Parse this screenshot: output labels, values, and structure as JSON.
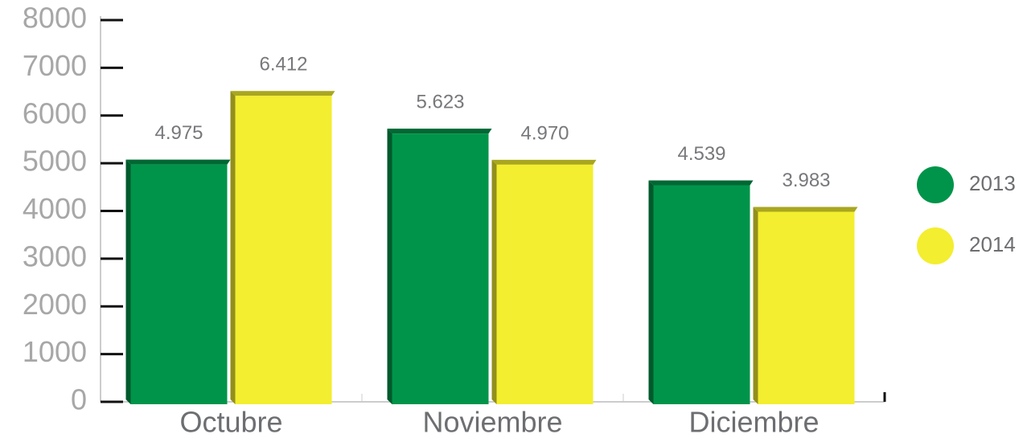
{
  "chart_data": {
    "type": "bar",
    "categories": [
      "Octubre",
      "Noviembre",
      "Diciembre"
    ],
    "series": [
      {
        "name": "2013",
        "color": "#00944a",
        "values": [
          4975,
          5623,
          4539
        ],
        "value_labels": [
          "4.975",
          "5.623",
          "4.539"
        ]
      },
      {
        "name": "2014",
        "color": "#f3ee2f",
        "values": [
          6412,
          4970,
          3983
        ],
        "value_labels": [
          "6.412",
          "4.970",
          "3.983"
        ]
      }
    ],
    "ylim": [
      0,
      8000
    ],
    "yticks": [
      0,
      1000,
      2000,
      3000,
      4000,
      5000,
      6000,
      7000,
      8000
    ],
    "legend": "right"
  }
}
